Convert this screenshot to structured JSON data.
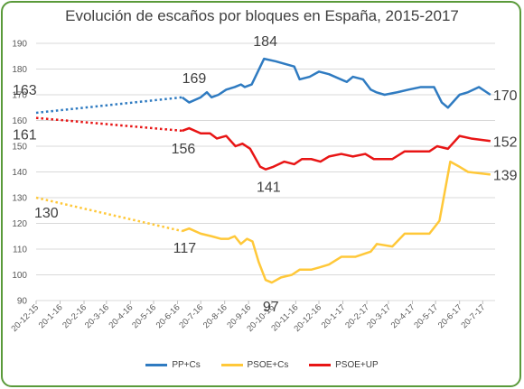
{
  "title": "Evolución de escaños por bloques en España, 2015-2017",
  "colors": {
    "pp_cs": "#2f7bc1",
    "psoe_cs": "#ffc839",
    "psoe_up": "#e81515",
    "frame": "#5a9a3a"
  },
  "chart_data": {
    "type": "line",
    "title": "Evolución de escaños por bloques en España, 2015-2017",
    "ylim": [
      90,
      190
    ],
    "yticks": [
      90,
      100,
      110,
      120,
      130,
      140,
      150,
      160,
      170,
      180,
      190
    ],
    "categories": [
      "20-12-15",
      "20-1-16",
      "20-2-16",
      "20-3-16",
      "20-4-16",
      "20-5-16",
      "20-6-16",
      "20-7-16",
      "20-8-16",
      "20-9-16",
      "20-10-16",
      "20-11-16",
      "20-12-16",
      "20-1-17",
      "20-2-17",
      "20-3-17",
      "20-4-17",
      "20-5-17",
      "20-6-17",
      "20-7-17"
    ],
    "x_start": "2015-12-20",
    "grid": true,
    "legend_position": "bottom",
    "series": [
      {
        "name": "PP+Cs",
        "color": "#2f7bc1",
        "dotted": [
          {
            "x": "2015-12-20",
            "y": 163
          },
          {
            "x": "2016-06-26",
            "y": 169
          }
        ],
        "solid": [
          {
            "x": "2016-06-26",
            "y": 169
          },
          {
            "x": "2016-07-05",
            "y": 167
          },
          {
            "x": "2016-07-20",
            "y": 169
          },
          {
            "x": "2016-07-28",
            "y": 171
          },
          {
            "x": "2016-08-03",
            "y": 169
          },
          {
            "x": "2016-08-12",
            "y": 170
          },
          {
            "x": "2016-08-22",
            "y": 172
          },
          {
            "x": "2016-09-02",
            "y": 173
          },
          {
            "x": "2016-09-10",
            "y": 174
          },
          {
            "x": "2016-09-15",
            "y": 173
          },
          {
            "x": "2016-09-24",
            "y": 174
          },
          {
            "x": "2016-10-10",
            "y": 184
          },
          {
            "x": "2016-10-25",
            "y": 183
          },
          {
            "x": "2016-11-18",
            "y": 181
          },
          {
            "x": "2016-11-25",
            "y": 176
          },
          {
            "x": "2016-12-08",
            "y": 177
          },
          {
            "x": "2016-12-20",
            "y": 179
          },
          {
            "x": "2017-01-02",
            "y": 178
          },
          {
            "x": "2017-01-25",
            "y": 175
          },
          {
            "x": "2017-02-02",
            "y": 177
          },
          {
            "x": "2017-02-15",
            "y": 176
          },
          {
            "x": "2017-02-25",
            "y": 172
          },
          {
            "x": "2017-03-04",
            "y": 171
          },
          {
            "x": "2017-03-15",
            "y": 170
          },
          {
            "x": "2017-04-01",
            "y": 171
          },
          {
            "x": "2017-04-15",
            "y": 172
          },
          {
            "x": "2017-05-01",
            "y": 173
          },
          {
            "x": "2017-05-18",
            "y": 173
          },
          {
            "x": "2017-05-28",
            "y": 167
          },
          {
            "x": "2017-06-05",
            "y": 165
          },
          {
            "x": "2017-06-20",
            "y": 170
          },
          {
            "x": "2017-07-01",
            "y": 171
          },
          {
            "x": "2017-07-15",
            "y": 173
          },
          {
            "x": "2017-07-30",
            "y": 170
          }
        ]
      },
      {
        "name": "PSOE+Cs",
        "color": "#ffc839",
        "dotted": [
          {
            "x": "2015-12-20",
            "y": 130
          },
          {
            "x": "2016-06-26",
            "y": 117
          }
        ],
        "solid": [
          {
            "x": "2016-06-26",
            "y": 117
          },
          {
            "x": "2016-07-05",
            "y": 118
          },
          {
            "x": "2016-07-20",
            "y": 116
          },
          {
            "x": "2016-08-03",
            "y": 115
          },
          {
            "x": "2016-08-15",
            "y": 114
          },
          {
            "x": "2016-08-25",
            "y": 114
          },
          {
            "x": "2016-09-02",
            "y": 115
          },
          {
            "x": "2016-09-10",
            "y": 112
          },
          {
            "x": "2016-09-18",
            "y": 114
          },
          {
            "x": "2016-09-25",
            "y": 113
          },
          {
            "x": "2016-10-03",
            "y": 105
          },
          {
            "x": "2016-10-12",
            "y": 98
          },
          {
            "x": "2016-10-20",
            "y": 97
          },
          {
            "x": "2016-11-01",
            "y": 99
          },
          {
            "x": "2016-11-15",
            "y": 100
          },
          {
            "x": "2016-11-25",
            "y": 102
          },
          {
            "x": "2016-12-10",
            "y": 102
          },
          {
            "x": "2016-12-22",
            "y": 103
          },
          {
            "x": "2017-01-02",
            "y": 104
          },
          {
            "x": "2017-01-18",
            "y": 107
          },
          {
            "x": "2017-02-05",
            "y": 107
          },
          {
            "x": "2017-02-15",
            "y": 108
          },
          {
            "x": "2017-02-25",
            "y": 109
          },
          {
            "x": "2017-03-05",
            "y": 112
          },
          {
            "x": "2017-03-25",
            "y": 111
          },
          {
            "x": "2017-04-10",
            "y": 116
          },
          {
            "x": "2017-04-25",
            "y": 116
          },
          {
            "x": "2017-05-12",
            "y": 116
          },
          {
            "x": "2017-05-25",
            "y": 121
          },
          {
            "x": "2017-06-08",
            "y": 144
          },
          {
            "x": "2017-06-20",
            "y": 142
          },
          {
            "x": "2017-07-01",
            "y": 140
          },
          {
            "x": "2017-07-30",
            "y": 139
          }
        ]
      },
      {
        "name": "PSOE+UP",
        "color": "#e81515",
        "dotted": [
          {
            "x": "2015-12-20",
            "y": 161
          },
          {
            "x": "2016-06-26",
            "y": 156
          }
        ],
        "solid": [
          {
            "x": "2016-06-26",
            "y": 156
          },
          {
            "x": "2016-07-05",
            "y": 157
          },
          {
            "x": "2016-07-20",
            "y": 155
          },
          {
            "x": "2016-08-01",
            "y": 155
          },
          {
            "x": "2016-08-10",
            "y": 153
          },
          {
            "x": "2016-08-22",
            "y": 154
          },
          {
            "x": "2016-09-03",
            "y": 150
          },
          {
            "x": "2016-09-12",
            "y": 151
          },
          {
            "x": "2016-09-22",
            "y": 149
          },
          {
            "x": "2016-10-05",
            "y": 142
          },
          {
            "x": "2016-10-12",
            "y": 141
          },
          {
            "x": "2016-10-22",
            "y": 142
          },
          {
            "x": "2016-11-05",
            "y": 144
          },
          {
            "x": "2016-11-18",
            "y": 143
          },
          {
            "x": "2016-11-28",
            "y": 145
          },
          {
            "x": "2016-12-10",
            "y": 145
          },
          {
            "x": "2016-12-22",
            "y": 144
          },
          {
            "x": "2017-01-02",
            "y": 146
          },
          {
            "x": "2017-01-18",
            "y": 147
          },
          {
            "x": "2017-02-02",
            "y": 146
          },
          {
            "x": "2017-02-18",
            "y": 147
          },
          {
            "x": "2017-03-01",
            "y": 145
          },
          {
            "x": "2017-03-25",
            "y": 145
          },
          {
            "x": "2017-04-10",
            "y": 148
          },
          {
            "x": "2017-04-25",
            "y": 148
          },
          {
            "x": "2017-05-12",
            "y": 148
          },
          {
            "x": "2017-05-22",
            "y": 150
          },
          {
            "x": "2017-06-05",
            "y": 149
          },
          {
            "x": "2017-06-20",
            "y": 154
          },
          {
            "x": "2017-07-05",
            "y": 153
          },
          {
            "x": "2017-07-30",
            "y": 152
          }
        ]
      }
    ],
    "annotations": [
      {
        "text": "163",
        "series": "PP+Cs",
        "x": "2015-12-20",
        "y": 163
      },
      {
        "text": "161",
        "series": "PSOE+UP",
        "x": "2015-12-20",
        "y": 161
      },
      {
        "text": "130",
        "series": "PSOE+Cs",
        "x": "2015-12-20",
        "y": 130
      },
      {
        "text": "169",
        "series": "PP+Cs",
        "x": "2016-06-26",
        "y": 169
      },
      {
        "text": "156",
        "series": "PSOE+UP",
        "x": "2016-06-26",
        "y": 156
      },
      {
        "text": "117",
        "series": "PSOE+Cs",
        "x": "2016-06-26",
        "y": 117
      },
      {
        "text": "184",
        "series": "PP+Cs",
        "x": "2016-10-10",
        "y": 184
      },
      {
        "text": "141",
        "series": "PSOE+UP",
        "x": "2016-10-12",
        "y": 141
      },
      {
        "text": "97",
        "series": "PSOE+Cs",
        "x": "2016-10-20",
        "y": 97
      },
      {
        "text": "170",
        "series": "PP+Cs",
        "x": "2017-07-30",
        "y": 170
      },
      {
        "text": "152",
        "series": "PSOE+UP",
        "x": "2017-07-30",
        "y": 152
      },
      {
        "text": "139",
        "series": "PSOE+Cs",
        "x": "2017-07-30",
        "y": 139
      }
    ]
  }
}
